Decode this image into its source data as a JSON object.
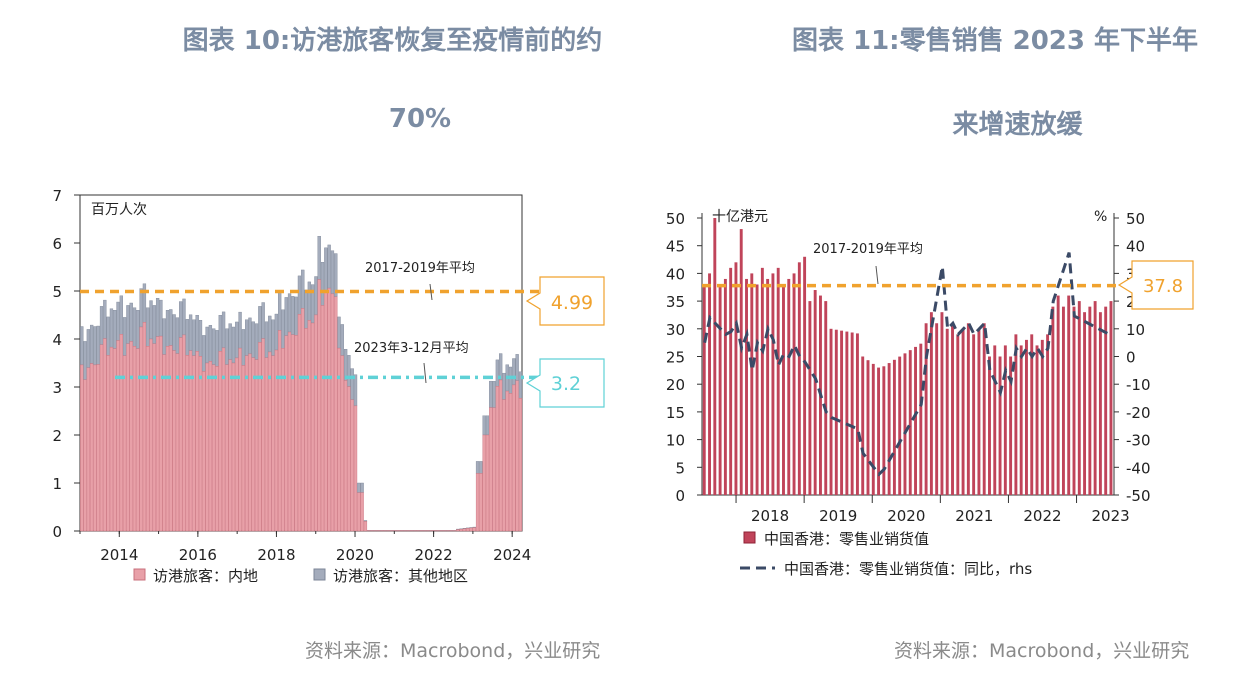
{
  "left": {
    "title_line1": "图表 10:访港旅客恢复至疫情前的约",
    "title_line2": "70%",
    "source": "资料来源：Macrobond，兴业研究",
    "chart_data": {
      "type": "bar",
      "stacked": true,
      "unit_label": "百万人次",
      "ylim": [
        0,
        7
      ],
      "y_ticks": [
        "0",
        "1",
        "2",
        "3",
        "4",
        "5",
        "6",
        "7"
      ],
      "x_ticks": [
        "2014",
        "2016",
        "2018",
        "2020",
        "2022",
        "2024"
      ],
      "series": [
        {
          "name": "访港旅客：内地",
          "color": "#e8a0a8",
          "values_note": "monthly, 2013-01 to 2024-02, values in millions (see script series)"
        },
        {
          "name": "访港旅客：其他地区",
          "color": "#a4acbc",
          "values_note": "stacked on top of mainland"
        }
      ],
      "reference_lines": [
        {
          "label": "2017-2019年平均",
          "value": 4.99,
          "value_label": "4.99",
          "color": "#f0a22e"
        },
        {
          "label": "2023年3-12月平均",
          "value": 3.2,
          "value_label": "3.2",
          "color": "#5fd1d6"
        }
      ],
      "legend": [
        "访港旅客：内地",
        "访港旅客：其他地区"
      ]
    }
  },
  "right": {
    "title_line1": "图表 11:零售销售 2023 年下半年",
    "title_line2": "来增速放缓",
    "source": "资料来源：Macrobond，兴业研究",
    "chart_data": {
      "type": "bar+line",
      "left_unit_label": "十亿港元",
      "right_unit_label": "%",
      "ylim_left": [
        0,
        50
      ],
      "ylim_right": [
        -50,
        50
      ],
      "y_ticks_left": [
        "0",
        "5",
        "10",
        "15",
        "20",
        "25",
        "30",
        "35",
        "40",
        "45",
        "50"
      ],
      "y_ticks_right": [
        "-50",
        "-40",
        "-30",
        "-20",
        "-10",
        "0",
        "10",
        "20",
        "30",
        "40",
        "50"
      ],
      "x_ticks": [
        "2018",
        "2019",
        "2020",
        "2021",
        "2022",
        "2023"
      ],
      "series": [
        {
          "name": "中国香港：零售业销货值",
          "type": "bar",
          "color": "#c0445a"
        },
        {
          "name": "中国香港：零售业销货值：同比，rhs",
          "type": "line",
          "color": "#3b4a66"
        }
      ],
      "reference_lines": [
        {
          "label": "2017-2019年平均",
          "value": 37.8,
          "value_label": "37.8",
          "color": "#f0a22e"
        }
      ],
      "legend": [
        "中国香港：零售业销货值",
        "中国香港：零售业销货值：同比，rhs"
      ]
    }
  }
}
